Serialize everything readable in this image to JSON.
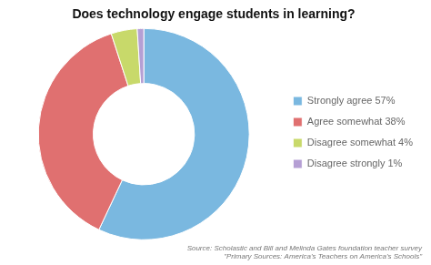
{
  "chart_data": {
    "type": "doughnut",
    "title": "Does technology engage students in learning?",
    "categories": [
      "Strongly agree 57%",
      "Agree somewhat 38%",
      "Disagree somewhat 4%",
      "Disagree strongly 1%"
    ],
    "values": [
      57,
      38,
      4,
      1
    ],
    "colors": [
      "#7ab8e0",
      "#e07070",
      "#c8d96a",
      "#b59fd4"
    ],
    "legend": "right",
    "annotations": [
      "Source: Scholastic and Bill and Melinda Gates foundation teacher survey",
      "\"Primary Sources: America's Teachers on America's Schools\""
    ]
  }
}
